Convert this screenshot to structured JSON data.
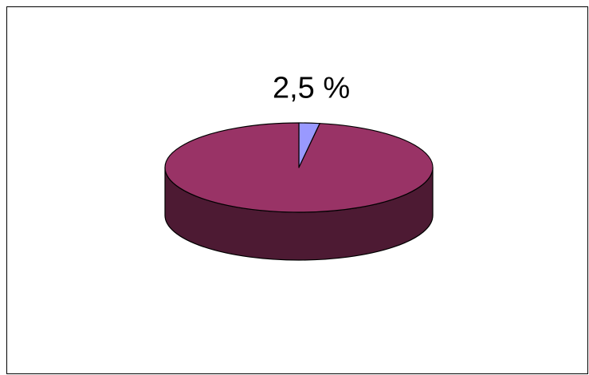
{
  "chart_data": {
    "type": "pie",
    "values": [
      2.5,
      97.5
    ],
    "value_labels": [
      "2,5 %",
      null
    ],
    "colors": [
      "#9999ff",
      "#993366"
    ],
    "three_d": true
  }
}
